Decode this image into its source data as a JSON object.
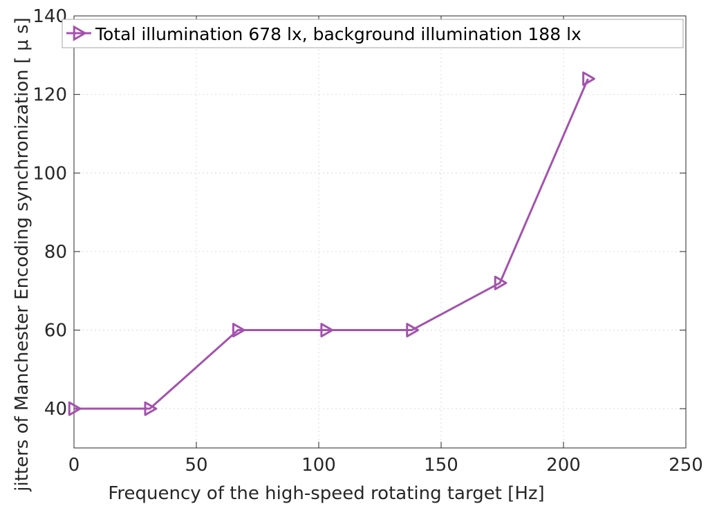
{
  "chart_data": {
    "type": "line",
    "xlabel": "Frequency of the high-speed rotating target [Hz]",
    "ylabel": "jitters of Manchester Encoding synchronization [ μ s]",
    "xlim": [
      0,
      250
    ],
    "ylim": [
      30,
      140
    ],
    "xticks": [
      0,
      50,
      100,
      150,
      200,
      250
    ],
    "yticks": [
      40,
      60,
      80,
      100,
      120,
      140
    ],
    "grid": true,
    "legend_position": "top-left",
    "series": [
      {
        "name": "Total illumination 678 lx, background illumination 188 lx",
        "color": "#a352ad",
        "marker": "triangle-right",
        "x": [
          0,
          31,
          67,
          103,
          138,
          174,
          210
        ],
        "y": [
          40,
          40,
          60,
          60,
          60,
          72,
          124
        ]
      }
    ]
  }
}
